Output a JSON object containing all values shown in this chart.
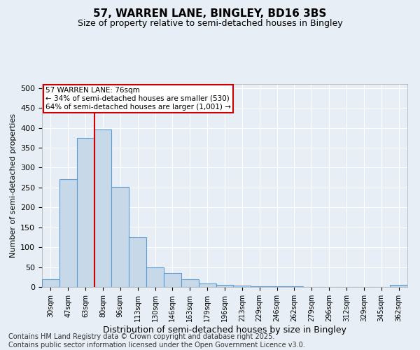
{
  "title": "57, WARREN LANE, BINGLEY, BD16 3BS",
  "subtitle": "Size of property relative to semi-detached houses in Bingley",
  "xlabel": "Distribution of semi-detached houses by size in Bingley",
  "ylabel": "Number of semi-detached properties",
  "categories": [
    "30sqm",
    "47sqm",
    "63sqm",
    "80sqm",
    "96sqm",
    "113sqm",
    "130sqm",
    "146sqm",
    "163sqm",
    "179sqm",
    "196sqm",
    "213sqm",
    "229sqm",
    "246sqm",
    "262sqm",
    "279sqm",
    "296sqm",
    "312sqm",
    "329sqm",
    "345sqm",
    "362sqm"
  ],
  "values": [
    20,
    270,
    375,
    395,
    252,
    125,
    50,
    35,
    20,
    8,
    5,
    4,
    2,
    1,
    1,
    0,
    0,
    0,
    0,
    0,
    5
  ],
  "bar_color": "#c7d9e8",
  "bar_edge_color": "#5b9bd5",
  "property_line_x": 2.5,
  "annotation_text": "57 WARREN LANE: 76sqm\n← 34% of semi-detached houses are smaller (530)\n64% of semi-detached houses are larger (1,001) →",
  "annotation_box_color": "#ffffff",
  "annotation_box_edge": "#cc0000",
  "vline_color": "#cc0000",
  "ylim": [
    0,
    510
  ],
  "yticks": [
    0,
    50,
    100,
    150,
    200,
    250,
    300,
    350,
    400,
    450,
    500
  ],
  "background_color": "#e8eef5",
  "footer": "Contains HM Land Registry data © Crown copyright and database right 2025.\nContains public sector information licensed under the Open Government Licence v3.0.",
  "title_fontsize": 11,
  "subtitle_fontsize": 9,
  "xlabel_fontsize": 9,
  "ylabel_fontsize": 8,
  "footer_fontsize": 7
}
